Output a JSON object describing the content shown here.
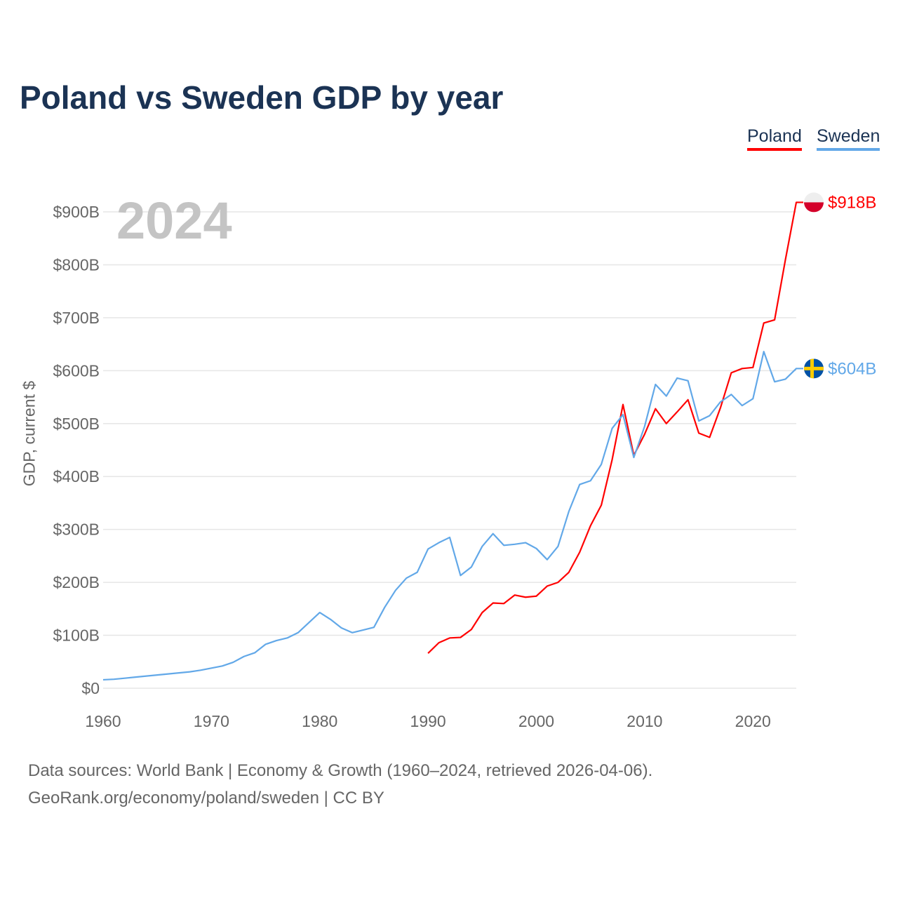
{
  "chart_data": {
    "type": "line",
    "title": "Poland vs Sweden GDP by year",
    "ylabel": "GDP, current $",
    "xlabel": "",
    "xlim": [
      1960,
      2024
    ],
    "ylim": [
      0,
      900
    ],
    "x_ticks": [
      1960,
      1970,
      1980,
      1990,
      2000,
      2010,
      2020
    ],
    "x_tick_labels": [
      "1960",
      "1970",
      "1980",
      "1990",
      "2000",
      "2010",
      "2020"
    ],
    "y_ticks": [
      0,
      100,
      200,
      300,
      400,
      500,
      600,
      700,
      800,
      900
    ],
    "y_tick_labels": [
      "$0",
      "$100B",
      "$200B",
      "$300B",
      "$400B",
      "$500B",
      "$600B",
      "$700B",
      "$800B",
      "$900B"
    ],
    "grid": true,
    "legend_position": "top-right",
    "current_year": "2024",
    "series": [
      {
        "name": "Poland",
        "color": "#ff0000",
        "end_label": "$918B",
        "flag": "poland-flag",
        "start_year": 1990,
        "values": [
          66,
          86,
          95,
          96,
          111,
          143,
          161,
          160,
          176,
          172,
          174,
          193,
          200,
          219,
          257,
          307,
          346,
          432,
          536,
          440,
          480,
          528,
          500,
          522,
          545,
          482,
          474,
          530,
          596,
          604,
          606,
          690,
          696,
          810,
          918
        ]
      },
      {
        "name": "Sweden",
        "color": "#62a8e8",
        "end_label": "$604B",
        "flag": "sweden-flag",
        "start_year": 1960,
        "values": [
          16,
          17,
          19,
          21,
          23,
          25,
          27,
          29,
          31,
          34,
          38,
          42,
          49,
          60,
          67,
          83,
          90,
          95,
          105,
          124,
          143,
          130,
          114,
          105,
          110,
          115,
          153,
          185,
          208,
          219,
          263,
          275,
          285,
          213,
          229,
          268,
          292,
          270,
          272,
          275,
          264,
          243,
          268,
          334,
          385,
          392,
          423,
          491,
          517,
          436,
          495,
          574,
          552,
          586,
          581,
          505,
          515,
          541,
          555,
          534,
          547,
          636,
          579,
          584,
          604
        ]
      }
    ]
  },
  "footer": {
    "sources": "Data sources: World Bank | Economy & Growth (1960–2024, retrieved 2026-04-06).",
    "credit": "GeoRank.org/economy/poland/sweden | CC BY"
  }
}
